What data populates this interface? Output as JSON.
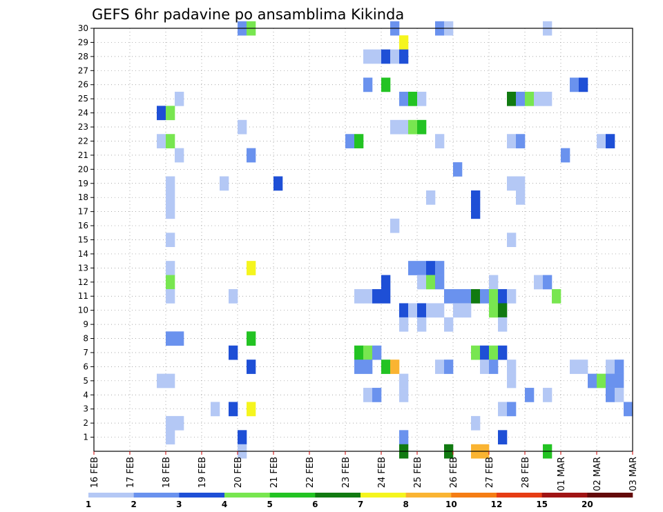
{
  "chart_data": {
    "type": "heatmap",
    "title": "GEFS 6hr padavine po ansamblima Kikinda",
    "xlabel": "",
    "ylabel": "",
    "x_ticks": [
      "16 FEB",
      "17 FEB",
      "18 FEB",
      "19 FEB",
      "20 FEB",
      "21 FEB",
      "22 FEB",
      "23 FEB",
      "24 FEB",
      "25 FEB",
      "26 FEB",
      "27 FEB",
      "28 FEB",
      "01 MAR",
      "02 MAR",
      "03 MAR"
    ],
    "y_ticks": [
      "1",
      "2",
      "3",
      "4",
      "5",
      "6",
      "7",
      "8",
      "9",
      "10",
      "11",
      "12",
      "13",
      "14",
      "15",
      "16",
      "17",
      "18",
      "19",
      "20",
      "21",
      "22",
      "23",
      "24",
      "25",
      "26",
      "27",
      "28",
      "29",
      "30"
    ],
    "x_range": [
      0,
      60
    ],
    "y_range": [
      0,
      30
    ],
    "x_unit": "6-hour step from 16 FEB 00Z",
    "y_unit": "ensemble member",
    "grid": true,
    "legend": {
      "placement": "bottom",
      "labels": [
        "1",
        "2",
        "3",
        "4",
        "5",
        "6",
        "7",
        "8",
        "10",
        "12",
        "15",
        "20"
      ],
      "colors": [
        "#b4c8f5",
        "#6a92ee",
        "#1e4fd6",
        "#78e650",
        "#23c323",
        "#117a11",
        "#f5f51e",
        "#fab432",
        "#f57d14",
        "#e63c14",
        "#a01414",
        "#640a0a"
      ]
    },
    "cells": [
      [
        16.5,
        30,
        2
      ],
      [
        17.5,
        30,
        4
      ],
      [
        33.5,
        30,
        2
      ],
      [
        38.5,
        30,
        2
      ],
      [
        39.5,
        30,
        1
      ],
      [
        50.5,
        30,
        1
      ],
      [
        34.5,
        29,
        7
      ],
      [
        30.5,
        28,
        1
      ],
      [
        31.5,
        28,
        1
      ],
      [
        32.5,
        28,
        3
      ],
      [
        33.5,
        28,
        1
      ],
      [
        34.5,
        28,
        3
      ],
      [
        30.5,
        26,
        2
      ],
      [
        32.5,
        26,
        5
      ],
      [
        53.5,
        26,
        2
      ],
      [
        54.5,
        26,
        3
      ],
      [
        9.5,
        25,
        1
      ],
      [
        34.5,
        25,
        2
      ],
      [
        35.5,
        25,
        5
      ],
      [
        36.5,
        25,
        1
      ],
      [
        46.5,
        25,
        6
      ],
      [
        47.5,
        25,
        2
      ],
      [
        48.5,
        25,
        4
      ],
      [
        49.5,
        25,
        1
      ],
      [
        50.5,
        25,
        1
      ],
      [
        7.5,
        24,
        3
      ],
      [
        8.5,
        24,
        4
      ],
      [
        16.5,
        23,
        1
      ],
      [
        33.5,
        23,
        1
      ],
      [
        34.5,
        23,
        1
      ],
      [
        35.5,
        23,
        4
      ],
      [
        36.5,
        23,
        5
      ],
      [
        7.5,
        22,
        1
      ],
      [
        8.5,
        22,
        4
      ],
      [
        28.5,
        22,
        2
      ],
      [
        29.5,
        22,
        5
      ],
      [
        38.5,
        22,
        1
      ],
      [
        46.5,
        22,
        1
      ],
      [
        47.5,
        22,
        2
      ],
      [
        56.5,
        22,
        1
      ],
      [
        57.5,
        22,
        3
      ],
      [
        9.5,
        21,
        1
      ],
      [
        17.5,
        21,
        2
      ],
      [
        52.5,
        21,
        2
      ],
      [
        40.5,
        20,
        2
      ],
      [
        8.5,
        19,
        1
      ],
      [
        14.5,
        19,
        1
      ],
      [
        20.5,
        19,
        3
      ],
      [
        46.5,
        19,
        1
      ],
      [
        47.5,
        19,
        1
      ],
      [
        8.5,
        18,
        1
      ],
      [
        37.5,
        18,
        1
      ],
      [
        42.5,
        18,
        3
      ],
      [
        47.5,
        18,
        1
      ],
      [
        8.5,
        17,
        1
      ],
      [
        42.5,
        17,
        3
      ],
      [
        33.5,
        16,
        1
      ],
      [
        8.5,
        15,
        1
      ],
      [
        46.5,
        15,
        1
      ],
      [
        8.5,
        13,
        1
      ],
      [
        17.5,
        13,
        7
      ],
      [
        35.5,
        13,
        2
      ],
      [
        36.5,
        13,
        2
      ],
      [
        37.5,
        13,
        3
      ],
      [
        38.5,
        13,
        2
      ],
      [
        32.5,
        12,
        3
      ],
      [
        36.5,
        12,
        1
      ],
      [
        37.5,
        12,
        4
      ],
      [
        38.5,
        12,
        2
      ],
      [
        44.5,
        12,
        1
      ],
      [
        49.5,
        12,
        1
      ],
      [
        50.5,
        12,
        2
      ],
      [
        8.5,
        12,
        4
      ],
      [
        8.5,
        11,
        1
      ],
      [
        15.5,
        11,
        1
      ],
      [
        29.5,
        11,
        1
      ],
      [
        30.5,
        11,
        1
      ],
      [
        31.5,
        11,
        3
      ],
      [
        32.5,
        11,
        3
      ],
      [
        39.5,
        11,
        2
      ],
      [
        40.5,
        11,
        2
      ],
      [
        41.5,
        11,
        2
      ],
      [
        42.5,
        11,
        6
      ],
      [
        43.5,
        11,
        2
      ],
      [
        44.5,
        11,
        4
      ],
      [
        45.5,
        11,
        3
      ],
      [
        46.5,
        11,
        1
      ],
      [
        51.5,
        11,
        4
      ],
      [
        34.5,
        10,
        3
      ],
      [
        35.5,
        10,
        1
      ],
      [
        36.5,
        10,
        3
      ],
      [
        37.5,
        10,
        1
      ],
      [
        38.5,
        10,
        1
      ],
      [
        40.5,
        10,
        1
      ],
      [
        41.5,
        10,
        1
      ],
      [
        44.5,
        10,
        4
      ],
      [
        45.5,
        10,
        6
      ],
      [
        34.5,
        9,
        1
      ],
      [
        36.5,
        9,
        1
      ],
      [
        39.5,
        9,
        1
      ],
      [
        45.5,
        9,
        1
      ],
      [
        8.5,
        8,
        2
      ],
      [
        9.5,
        8,
        2
      ],
      [
        17.5,
        8,
        5
      ],
      [
        15.5,
        7,
        3
      ],
      [
        29.5,
        7,
        5
      ],
      [
        30.5,
        7,
        4
      ],
      [
        31.5,
        7,
        2
      ],
      [
        42.5,
        7,
        4
      ],
      [
        43.5,
        7,
        3
      ],
      [
        44.5,
        7,
        4
      ],
      [
        45.5,
        7,
        3
      ],
      [
        17.5,
        6,
        3
      ],
      [
        29.5,
        6,
        2
      ],
      [
        30.5,
        6,
        2
      ],
      [
        32.5,
        6,
        5
      ],
      [
        33.5,
        6,
        8
      ],
      [
        38.5,
        6,
        1
      ],
      [
        39.5,
        6,
        2
      ],
      [
        43.5,
        6,
        1
      ],
      [
        44.5,
        6,
        2
      ],
      [
        46.5,
        6,
        1
      ],
      [
        53.5,
        6,
        1
      ],
      [
        54.5,
        6,
        1
      ],
      [
        57.5,
        6,
        1
      ],
      [
        58.5,
        6,
        2
      ],
      [
        7.5,
        5,
        1
      ],
      [
        8.5,
        5,
        1
      ],
      [
        34.5,
        5,
        1
      ],
      [
        46.5,
        5,
        1
      ],
      [
        55.5,
        5,
        2
      ],
      [
        56.5,
        5,
        4
      ],
      [
        57.5,
        5,
        2
      ],
      [
        58.5,
        5,
        2
      ],
      [
        30.5,
        4,
        1
      ],
      [
        31.5,
        4,
        2
      ],
      [
        34.5,
        4,
        1
      ],
      [
        48.5,
        4,
        2
      ],
      [
        50.5,
        4,
        1
      ],
      [
        57.5,
        4,
        2
      ],
      [
        58.5,
        4,
        1
      ],
      [
        13.5,
        3,
        1
      ],
      [
        15.5,
        3,
        3
      ],
      [
        17.5,
        3,
        7
      ],
      [
        45.5,
        3,
        1
      ],
      [
        46.5,
        3,
        2
      ],
      [
        59.5,
        3,
        2
      ],
      [
        8.5,
        2,
        1
      ],
      [
        9.5,
        2,
        1
      ],
      [
        42.5,
        2,
        1
      ],
      [
        8.5,
        1,
        1
      ],
      [
        16.5,
        1,
        3
      ],
      [
        34.5,
        1,
        2
      ],
      [
        45.5,
        1,
        3
      ],
      [
        16.5,
        0,
        1
      ],
      [
        34.5,
        0,
        6
      ],
      [
        39.5,
        0,
        6
      ],
      [
        42.5,
        0,
        8
      ],
      [
        43.5,
        0,
        8
      ],
      [
        50.5,
        0,
        5
      ]
    ]
  }
}
